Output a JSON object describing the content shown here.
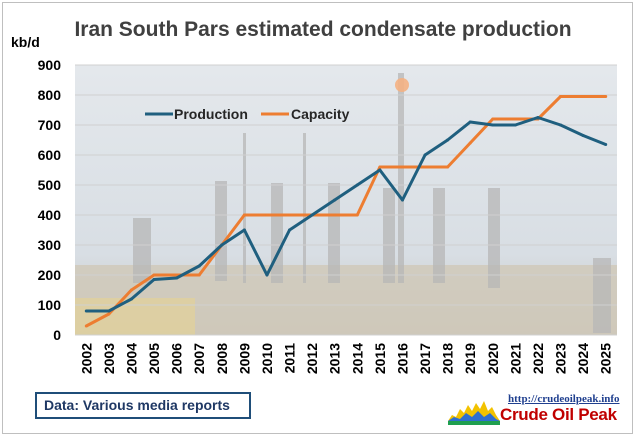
{
  "source_note": "Data: Various media reports",
  "brand": {
    "url": "http://crudeoilpeak.info",
    "name": "Crude Oil Peak"
  },
  "colors": {
    "production": "#1f5f7f",
    "capacity": "#ed7d31",
    "grid": "#d0d0d0"
  },
  "chart_data": {
    "type": "line",
    "title": "Iran South Pars estimated condensate production",
    "ylabel": "kb/d",
    "xlabel": "",
    "ylim": [
      0,
      900
    ],
    "yticks": [
      0,
      100,
      200,
      300,
      400,
      500,
      600,
      700,
      800,
      900
    ],
    "grid": true,
    "legend_position": "top-left",
    "x": [
      "2002",
      "2003",
      "2004",
      "2005",
      "2006",
      "2007",
      "2008",
      "2009",
      "2010",
      "2011",
      "2012",
      "2013",
      "2014",
      "2015",
      "2016",
      "2017",
      "2018",
      "2019",
      "2020",
      "2021",
      "2022",
      "2023",
      "2024",
      "2025"
    ],
    "series": [
      {
        "name": "Production",
        "values": [
          80,
          80,
          120,
          185,
          190,
          230,
          300,
          350,
          200,
          350,
          400,
          450,
          500,
          550,
          450,
          600,
          650,
          710,
          700,
          700,
          725,
          700,
          665,
          635
        ]
      },
      {
        "name": "Capacity",
        "values": [
          30,
          70,
          150,
          200,
          200,
          200,
          300,
          400,
          400,
          400,
          400,
          400,
          400,
          560,
          560,
          560,
          560,
          640,
          720,
          720,
          720,
          795,
          795,
          795
        ]
      }
    ]
  }
}
